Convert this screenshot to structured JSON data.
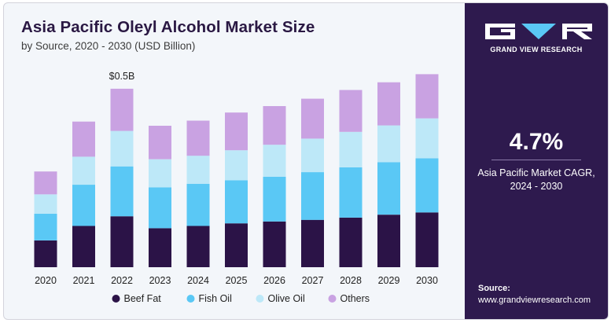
{
  "header": {
    "title": "Asia Pacific Oleyl Alcohol Market Size",
    "subtitle": "by Source, 2020 - 2030 (USD Billion)"
  },
  "brand": {
    "name": "GRAND VIEW RESEARCH"
  },
  "cagr": {
    "value": "4.7%",
    "label_line1": "Asia Pacific Market CAGR,",
    "label_line2": "2024 - 2030"
  },
  "source": {
    "label": "Source:",
    "url": "www.grandviewresearch.com"
  },
  "chart_data": {
    "type": "bar",
    "stacked": true,
    "title": "Asia Pacific Oleyl Alcohol Market Size",
    "subtitle": "by Source, 2020 - 2030 (USD Billion)",
    "categories": [
      "2020",
      "2021",
      "2022",
      "2023",
      "2024",
      "2025",
      "2026",
      "2027",
      "2028",
      "2029",
      "2030"
    ],
    "series": [
      {
        "name": "Beef Fat",
        "color": "#2b1347",
        "values": [
          0.083,
          0.128,
          0.158,
          0.121,
          0.128,
          0.136,
          0.142,
          0.147,
          0.154,
          0.163,
          0.17
        ]
      },
      {
        "name": "Fish Oil",
        "color": "#5ac8f5",
        "values": [
          0.083,
          0.128,
          0.155,
          0.127,
          0.131,
          0.134,
          0.139,
          0.148,
          0.156,
          0.163,
          0.168
        ]
      },
      {
        "name": "Olive Oil",
        "color": "#bde8f8",
        "values": [
          0.06,
          0.087,
          0.11,
          0.087,
          0.087,
          0.093,
          0.099,
          0.104,
          0.11,
          0.114,
          0.124
        ]
      },
      {
        "name": "Others",
        "color": "#c9a2e2",
        "values": [
          0.071,
          0.109,
          0.131,
          0.104,
          0.109,
          0.117,
          0.12,
          0.124,
          0.13,
          0.134,
          0.137
        ]
      }
    ],
    "annotations": [
      {
        "category": "2022",
        "text": "$0.5B"
      }
    ],
    "ylim": [
      0,
      0.6
    ],
    "xlabel": "",
    "ylabel": "",
    "grid": false,
    "legend": "bottom-center"
  }
}
